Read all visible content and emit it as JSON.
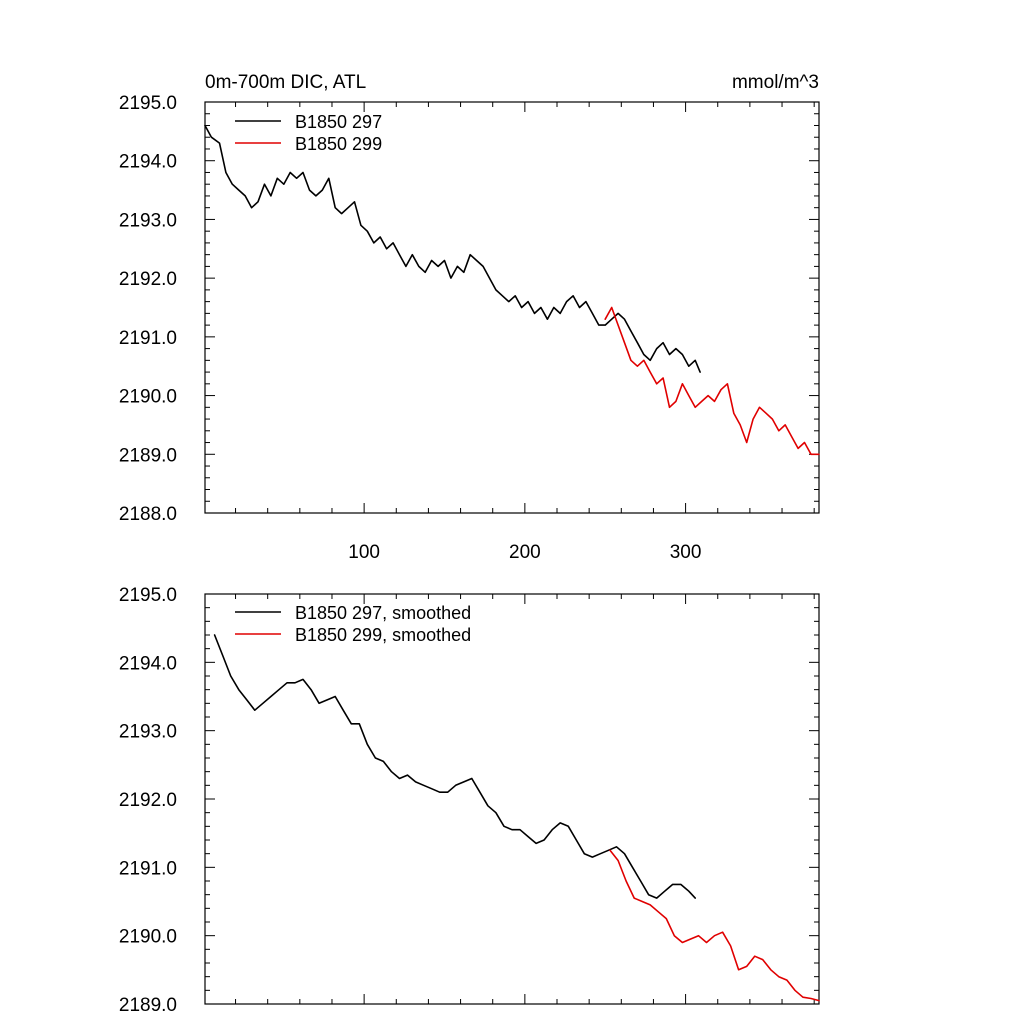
{
  "colors": {
    "run1": "#000000",
    "run2": "#e00000"
  },
  "chart_data": [
    {
      "type": "line",
      "title": "0m-700m DIC, ATL",
      "units": "mmol/m^3",
      "xlim": [
        1,
        383
      ],
      "ylim": [
        2188.0,
        2195.0
      ],
      "xticks": [
        100,
        200,
        300
      ],
      "xtick_labels": [
        "100",
        "200",
        "300"
      ],
      "yticks": [
        2188.0,
        2189.0,
        2190.0,
        2191.0,
        2192.0,
        2193.0,
        2194.0,
        2195.0
      ],
      "ytick_labels": [
        "2188.0",
        "2189.0",
        "2190.0",
        "2191.0",
        "2192.0",
        "2193.0",
        "2194.0",
        "2195.0"
      ],
      "legend": [
        "B1850 297",
        "B1850 299"
      ],
      "series": [
        {
          "name": "B1850 297",
          "x": [
            1,
            5,
            10,
            14,
            18,
            22,
            26,
            30,
            34,
            38,
            42,
            46,
            50,
            54,
            58,
            62,
            66,
            70,
            74,
            78,
            82,
            86,
            90,
            94,
            98,
            102,
            106,
            110,
            114,
            118,
            122,
            126,
            130,
            134,
            138,
            142,
            146,
            150,
            154,
            158,
            162,
            166,
            170,
            174,
            178,
            182,
            186,
            190,
            194,
            198,
            202,
            206,
            210,
            214,
            218,
            222,
            226,
            230,
            234,
            238,
            242,
            246,
            250,
            254,
            258,
            262,
            266,
            270,
            274,
            278,
            282,
            286,
            290,
            294,
            298,
            302,
            306,
            309
          ],
          "values": [
            2194.6,
            2194.4,
            2194.3,
            2193.8,
            2193.6,
            2193.5,
            2193.4,
            2193.2,
            2193.3,
            2193.6,
            2193.4,
            2193.7,
            2193.6,
            2193.8,
            2193.7,
            2193.8,
            2193.5,
            2193.4,
            2193.5,
            2193.7,
            2193.2,
            2193.1,
            2193.2,
            2193.3,
            2192.9,
            2192.8,
            2192.6,
            2192.7,
            2192.5,
            2192.6,
            2192.4,
            2192.2,
            2192.4,
            2192.2,
            2192.1,
            2192.3,
            2192.2,
            2192.3,
            2192.0,
            2192.2,
            2192.1,
            2192.4,
            2192.3,
            2192.2,
            2192.0,
            2191.8,
            2191.7,
            2191.6,
            2191.7,
            2191.5,
            2191.6,
            2191.4,
            2191.5,
            2191.3,
            2191.5,
            2191.4,
            2191.6,
            2191.7,
            2191.5,
            2191.6,
            2191.4,
            2191.2,
            2191.2,
            2191.3,
            2191.4,
            2191.3,
            2191.1,
            2190.9,
            2190.7,
            2190.6,
            2190.8,
            2190.9,
            2190.7,
            2190.8,
            2190.7,
            2190.5,
            2190.6,
            2190.4
          ]
        },
        {
          "name": "B1850 299",
          "x": [
            250,
            254,
            258,
            262,
            266,
            270,
            274,
            278,
            282,
            286,
            290,
            294,
            298,
            302,
            306,
            310,
            314,
            318,
            322,
            326,
            330,
            334,
            338,
            342,
            346,
            350,
            354,
            358,
            362,
            366,
            370,
            374,
            378,
            383
          ],
          "values": [
            2191.3,
            2191.5,
            2191.2,
            2190.9,
            2190.6,
            2190.5,
            2190.6,
            2190.4,
            2190.2,
            2190.3,
            2189.8,
            2189.9,
            2190.2,
            2190.0,
            2189.8,
            2189.9,
            2190.0,
            2189.9,
            2190.1,
            2190.2,
            2189.7,
            2189.5,
            2189.2,
            2189.6,
            2189.8,
            2189.7,
            2189.6,
            2189.4,
            2189.5,
            2189.3,
            2189.1,
            2189.2,
            2189.0,
            2189.0
          ]
        }
      ]
    },
    {
      "type": "line",
      "xlim": [
        1,
        383
      ],
      "ylim": [
        2189.0,
        2195.0
      ],
      "xticks": [
        100,
        200,
        300
      ],
      "yticks": [
        2189.0,
        2190.0,
        2191.0,
        2192.0,
        2193.0,
        2194.0,
        2195.0
      ],
      "ytick_labels": [
        "2189.0",
        "2190.0",
        "2191.0",
        "2192.0",
        "2193.0",
        "2194.0",
        "2195.0"
      ],
      "legend": [
        "B1850 297, smoothed",
        "B1850 299, smoothed"
      ],
      "series": [
        {
          "name": "B1850 297, smoothed",
          "x": [
            7,
            12,
            17,
            22,
            27,
            32,
            37,
            42,
            47,
            52,
            57,
            62,
            67,
            72,
            77,
            82,
            87,
            92,
            97,
            102,
            107,
            112,
            117,
            122,
            127,
            132,
            137,
            142,
            147,
            152,
            157,
            162,
            167,
            172,
            177,
            182,
            187,
            192,
            197,
            202,
            207,
            212,
            217,
            222,
            227,
            232,
            237,
            242,
            247,
            252,
            257,
            262,
            267,
            272,
            277,
            282,
            287,
            292,
            297,
            302,
            306
          ],
          "values": [
            2194.4,
            2194.1,
            2193.8,
            2193.6,
            2193.45,
            2193.3,
            2193.4,
            2193.5,
            2193.6,
            2193.7,
            2193.7,
            2193.75,
            2193.6,
            2193.4,
            2193.45,
            2193.5,
            2193.3,
            2193.1,
            2193.1,
            2192.8,
            2192.6,
            2192.55,
            2192.4,
            2192.3,
            2192.35,
            2192.25,
            2192.2,
            2192.15,
            2192.1,
            2192.1,
            2192.2,
            2192.25,
            2192.3,
            2192.1,
            2191.9,
            2191.8,
            2191.6,
            2191.55,
            2191.55,
            2191.45,
            2191.35,
            2191.4,
            2191.55,
            2191.65,
            2191.6,
            2191.4,
            2191.2,
            2191.15,
            2191.2,
            2191.25,
            2191.3,
            2191.2,
            2191.0,
            2190.8,
            2190.6,
            2190.55,
            2190.65,
            2190.75,
            2190.75,
            2190.65,
            2190.55
          ]
        },
        {
          "name": "B1850 299, smoothed",
          "x": [
            253,
            258,
            263,
            268,
            273,
            278,
            283,
            288,
            293,
            298,
            303,
            308,
            313,
            318,
            323,
            328,
            333,
            338,
            343,
            348,
            353,
            358,
            363,
            368,
            373,
            378,
            383
          ],
          "values": [
            2191.25,
            2191.1,
            2190.8,
            2190.55,
            2190.5,
            2190.45,
            2190.35,
            2190.25,
            2190.0,
            2189.9,
            2189.95,
            2190.0,
            2189.9,
            2190.0,
            2190.05,
            2189.85,
            2189.5,
            2189.55,
            2189.7,
            2189.65,
            2189.5,
            2189.4,
            2189.35,
            2189.2,
            2189.1,
            2189.08,
            2189.05
          ]
        }
      ]
    }
  ]
}
